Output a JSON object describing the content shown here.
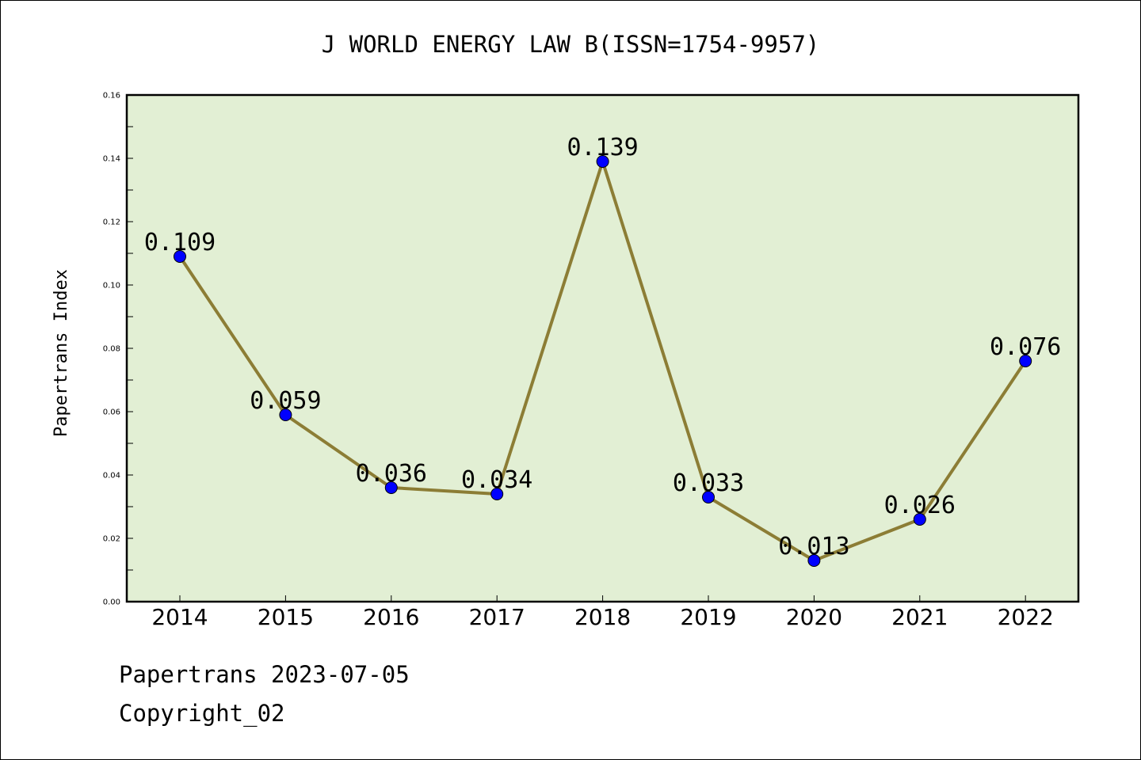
{
  "chart_data": {
    "type": "line",
    "title": "J WORLD ENERGY LAW B(ISSN=1754-9957)",
    "xlabel": "",
    "ylabel": "Papertrans Index",
    "categories": [
      "2014",
      "2015",
      "2016",
      "2017",
      "2018",
      "2019",
      "2020",
      "2021",
      "2022"
    ],
    "values": [
      0.109,
      0.059,
      0.036,
      0.034,
      0.139,
      0.033,
      0.013,
      0.026,
      0.076
    ],
    "data_labels": [
      "0.109",
      "0.059",
      "0.036",
      "0.034",
      "0.139",
      "0.033",
      "0.013",
      "0.026",
      "0.076"
    ],
    "ylim": [
      0,
      0.16
    ],
    "yticks": [
      0.0,
      0.02,
      0.04,
      0.06,
      0.08,
      0.1,
      0.12,
      0.14,
      0.16
    ],
    "ytick_labels": [
      "0.00",
      "0.02",
      "0.04",
      "0.06",
      "0.08",
      "0.10",
      "0.12",
      "0.14",
      "0.16"
    ],
    "grid": false,
    "legend": "none",
    "colors": {
      "plot_background": "#e2efd4",
      "line": "#8c7d35",
      "marker": "#0000ff"
    }
  },
  "footer": {
    "date_line": "Papertrans 2023-07-05",
    "copyright": "Copyright_02"
  }
}
